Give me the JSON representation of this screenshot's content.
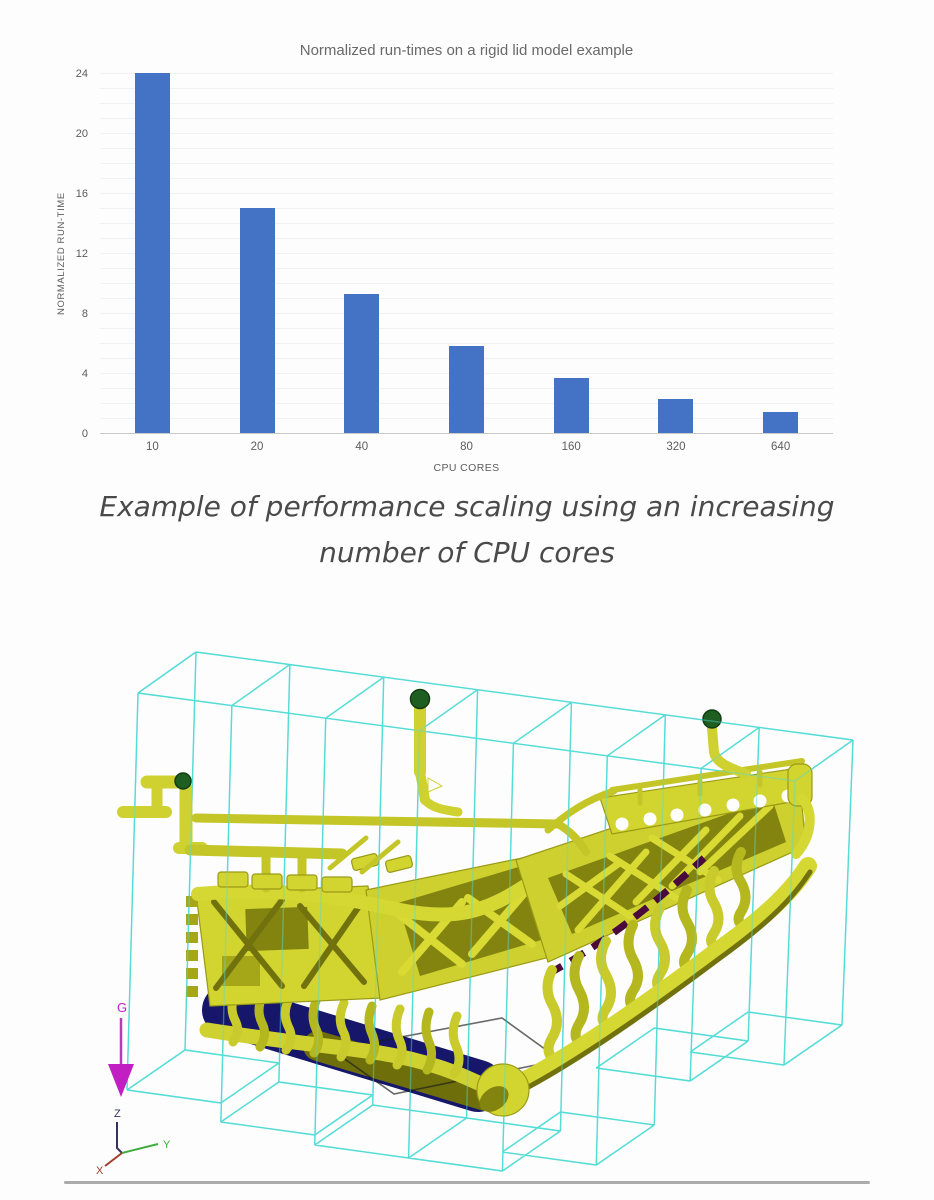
{
  "chart_data": {
    "type": "bar",
    "title": "Normalized run-times on a rigid lid model example",
    "categories": [
      "10",
      "20",
      "40",
      "80",
      "160",
      "320",
      "640"
    ],
    "values": [
      24,
      15,
      9.3,
      5.8,
      3.7,
      2.3,
      1.4
    ],
    "xlabel": "CPU CORES",
    "ylabel": "NORMALIZED RUN-TIME",
    "ylim": [
      0,
      24
    ],
    "yticks": [
      0,
      4,
      8,
      12,
      16,
      20,
      24
    ],
    "grid": true,
    "legend": false,
    "bar_color": "#4472c4"
  },
  "caption": {
    "lines": [
      "Example of performance scaling using an increasing",
      "number of CPU cores"
    ]
  },
  "model": {
    "gravity_label": "G",
    "axes": {
      "z": "Z",
      "y": "Y",
      "x": "X"
    },
    "colors": {
      "wireframe": "#55dcd8",
      "part": "#d2d430",
      "part-shadow": "#83840f",
      "core": "#16166b",
      "accent": "#4a0a3e",
      "vent-ball": "#1e5e20",
      "gravity": "#c21fc2",
      "axis-y": "#3fae3f",
      "axis-x": "#a03f2a",
      "axis-z": "#33335e"
    }
  }
}
